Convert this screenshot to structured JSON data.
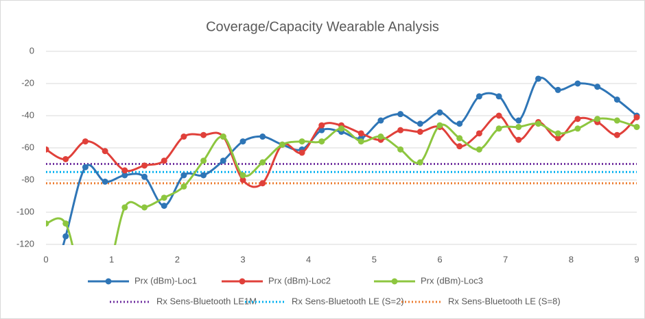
{
  "chart_data": {
    "type": "line",
    "title": "Coverage/Capacity Wearable Analysis",
    "x": [
      0,
      0.3,
      0.6,
      0.9,
      1.2,
      1.5,
      1.8,
      2.1,
      2.4,
      2.7,
      3.0,
      3.3,
      3.6,
      3.9,
      4.2,
      4.5,
      4.8,
      5.1,
      5.4,
      5.7,
      6.0,
      6.3,
      6.6,
      6.9,
      7.2,
      7.5,
      7.8,
      8.1,
      8.4,
      8.7,
      9.0
    ],
    "series": [
      {
        "name": "Prx (dBm)-Loc1",
        "color": "#2e75b6",
        "values": [
          -160,
          -115,
          -72,
          -81,
          -77,
          -78,
          -96,
          -77,
          -77,
          -68,
          -56,
          -53,
          -58,
          -61,
          -49,
          -50,
          -54,
          -43,
          -39,
          -45,
          -38,
          -45,
          -28,
          -28,
          -43,
          -17,
          -24,
          -20,
          -22,
          -30,
          -40
        ]
      },
      {
        "name": "Prx (dBm)-Loc2",
        "color": "#e0403a",
        "values": [
          -61,
          -67,
          -56,
          -62,
          -74,
          -71,
          -68,
          -53,
          -52,
          -53,
          -80,
          -82,
          -58,
          -63,
          -46,
          -46,
          -51,
          -55,
          -49,
          -50,
          -47,
          -59,
          -51,
          -40,
          -55,
          -44,
          -54,
          -42,
          -44,
          -52,
          -41
        ]
      },
      {
        "name": "Prx (dBm)-Loc3",
        "color": "#8dc63f",
        "values": [
          -107,
          -107,
          -150,
          -145,
          -97,
          -97,
          -91,
          -84,
          -68,
          -53,
          -77,
          -69,
          -58,
          -56,
          -56,
          -48,
          -56,
          -53,
          -61,
          -69,
          -46,
          -54,
          -61,
          -48,
          -47,
          -45,
          -51,
          -48,
          -42,
          -43,
          -47
        ]
      }
    ],
    "reference_lines": [
      {
        "name": "Rx Sens-Bluetooth LE1M",
        "color": "#7030a0",
        "value": -70
      },
      {
        "name": "Rx Sens-Bluetooth LE (S=2)",
        "color": "#00b0f0",
        "value": -75
      },
      {
        "name": "Rx Sens-Bluetooth LE (S=8)",
        "color": "#ed7d31",
        "value": -82
      }
    ],
    "xlim": [
      0,
      9
    ],
    "xticks": [
      0,
      1,
      2,
      3,
      4,
      5,
      6,
      7,
      8,
      9
    ],
    "ylim": [
      -120,
      0
    ],
    "yticks": [
      -120,
      -100,
      -80,
      -60,
      -40,
      -20,
      0
    ],
    "grid": true,
    "smooth": true,
    "legend": "bottom"
  }
}
